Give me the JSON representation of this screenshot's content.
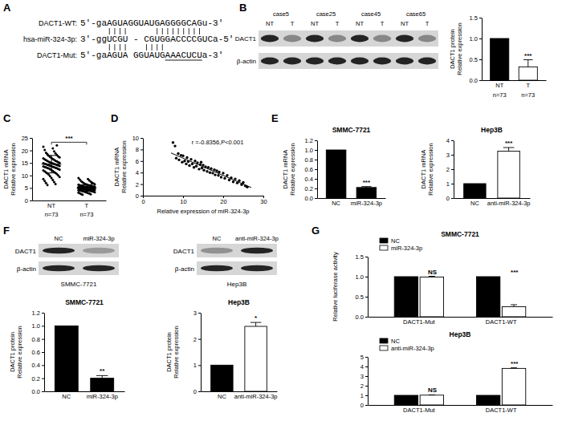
{
  "panel_labels": [
    "A",
    "B",
    "C",
    "D",
    "E",
    "F",
    "G"
  ],
  "alignment": {
    "rows": [
      {
        "name": "DACT1-WT:",
        "sequence": "5'-gaAGUAGGUAUGAGGGGCAGu-3'"
      },
      {
        "name": "hsa-miR-324-3p:",
        "sequence": "3'-ggUCGU - CGUGGACCCCGUCa-5'"
      },
      {
        "name": "DACT1-Mut:",
        "sequence": "5'-gaAGUA GGUAUGAAACUCUa-3'"
      }
    ]
  },
  "blots": [
    {
      "lane_groups": [
        "case5",
        "case25",
        "case45",
        "case65"
      ],
      "lanes": [
        "NT",
        "T",
        "NT",
        "T",
        "NT",
        "T",
        "NT",
        "T"
      ],
      "rows": [
        "DACT1",
        "β-actin"
      ]
    },
    {
      "title": "SMMC-7721",
      "lanes": [
        "NC",
        "miR-324-3p"
      ],
      "rows": [
        "DACT1",
        "β-actin"
      ]
    },
    {
      "title": "Hep3B",
      "lanes": [
        "NC",
        "anti-miR-324-3p"
      ],
      "rows": [
        "DACT1",
        "β-actin"
      ]
    }
  ],
  "chart_data": [
    {
      "type": "bar",
      "y_label": [
        "DACT1 protein",
        "Relative expression"
      ],
      "categories": [
        "NT",
        "T"
      ],
      "category_notes": [
        "n=73",
        "n=73"
      ],
      "values": [
        1.0,
        0.32
      ],
      "errors": [
        null,
        0.17
      ],
      "colors": [
        "#000000",
        "#ffffff"
      ],
      "ylim": [
        0,
        1.5
      ],
      "yticks": [
        {
          "value": 0,
          "label": "0.0"
        },
        0.5,
        {
          "value": 1,
          "label": "1.0"
        },
        1.5
      ],
      "annotations": [
        {
          "text": "***",
          "category": "T"
        }
      ]
    },
    {
      "type": "dot",
      "y_label": [
        "DACT1 mRNA",
        "Relative expression"
      ],
      "categories": [
        "NT",
        "T"
      ],
      "category_notes": [
        "n=73",
        "n=73"
      ],
      "values": [
        [
          21.5,
          20.8,
          20.2,
          19.6,
          19.1,
          18.8,
          18.5,
          18.2,
          17.9,
          17.6,
          17.4,
          17.2,
          17.0,
          16.8,
          16.6,
          16.4,
          16.3,
          16.1,
          15.9,
          15.8,
          15.6,
          15.5,
          15.3,
          15.2,
          15.1,
          15.0,
          14.9,
          14.8,
          14.7,
          14.6,
          14.5,
          14.4,
          14.3,
          14.2,
          14.1,
          14.0,
          13.9,
          13.8,
          13.7,
          13.6,
          13.5,
          13.4,
          13.3,
          13.2,
          13.1,
          13.0,
          12.9,
          12.8,
          12.6,
          12.5,
          12.3,
          12.2,
          12.0,
          11.8,
          11.6,
          11.4,
          11.2,
          11.0,
          10.8,
          10.6,
          10.3,
          10.0,
          9.7,
          9.4,
          9.0,
          8.6,
          8.2,
          7.8,
          7.4,
          7.0,
          6.6,
          6.2,
          22.0
        ],
        [
          9.0,
          8.6,
          8.3,
          8.0,
          7.7,
          7.5,
          7.3,
          7.1,
          6.9,
          6.8,
          6.6,
          6.5,
          6.4,
          6.3,
          6.2,
          6.1,
          6.0,
          5.9,
          5.8,
          5.8,
          5.7,
          5.6,
          5.6,
          5.5,
          5.5,
          5.4,
          5.4,
          5.3,
          5.3,
          5.2,
          5.2,
          5.1,
          5.1,
          5.0,
          5.0,
          5.0,
          4.9,
          4.9,
          4.8,
          4.8,
          4.7,
          4.7,
          4.6,
          4.6,
          4.5,
          4.5,
          4.4,
          4.4,
          4.3,
          4.3,
          4.2,
          4.2,
          4.1,
          4.0,
          4.0,
          3.9,
          3.9,
          3.8,
          3.7,
          3.7,
          3.6,
          3.5,
          3.4,
          3.3,
          3.2,
          3.1,
          3.0,
          2.9,
          2.8,
          2.6,
          2.5,
          2.3,
          6.7
        ]
      ],
      "means": [
        14.5,
        5.0
      ],
      "sd": [
        3.5,
        1.3
      ],
      "color": "#000000",
      "ylim": [
        0,
        25
      ],
      "yticks": [
        0,
        5,
        10,
        15,
        20,
        25
      ],
      "annotations": [
        {
          "text": "***",
          "between": [
            "NT",
            "T"
          ]
        }
      ]
    },
    {
      "type": "scatter",
      "x_label": "Relative expression of miR-324-3p",
      "y_label": [
        "DACT1 mRNA",
        "Relative expression"
      ],
      "annotation": "r =-0.8356,P<0.001",
      "color": "#000000",
      "x": [
        7.5,
        8,
        8.3,
        8.8,
        9,
        9.5,
        9.8,
        10,
        10.4,
        10.8,
        11,
        11.3,
        11.6,
        12,
        12.3,
        12.7,
        13,
        13.3,
        13.6,
        14,
        14.3,
        14.7,
        15,
        15.2,
        15.6,
        16,
        16.3,
        16.7,
        17,
        17.4,
        17.8,
        18,
        18.4,
        18.8,
        19,
        19.5,
        20,
        20.4,
        21,
        21.5,
        22,
        22.5,
        23,
        23.5,
        24,
        24.6,
        25,
        25.5,
        26,
        14.5
      ],
      "y": [
        9.2,
        8.6,
        6.5,
        7.3,
        6.2,
        7.0,
        5.8,
        6.9,
        6.0,
        5.5,
        6.6,
        5.9,
        5.2,
        6.3,
        5.5,
        4.9,
        6.0,
        5.1,
        5.7,
        4.6,
        5.4,
        4.8,
        5.3,
        4.4,
        5.0,
        4.2,
        4.9,
        4.0,
        4.7,
        3.9,
        4.5,
        3.6,
        4.3,
        3.5,
        4.1,
        3.2,
        3.9,
        3.0,
        3.5,
        2.7,
        3.1,
        2.4,
        2.9,
        2.2,
        2.6,
        1.9,
        2.3,
        1.7,
        1.5,
        5.8
      ],
      "fit_line": {
        "x": [
          7,
          27
        ],
        "y": [
          7.4,
          1.4
        ]
      },
      "xlim": [
        0,
        30
      ],
      "xticks": [
        0,
        10,
        20,
        30
      ],
      "ylim": [
        0,
        10
      ],
      "yticks": [
        0,
        2,
        4,
        6,
        8,
        10
      ]
    },
    {
      "type": "bar",
      "title": "SMMC-7721",
      "y_label": [
        "DACT1 mRNA",
        "Relative expression"
      ],
      "categories": [
        "NC",
        "miR-324-3p"
      ],
      "values": [
        1.0,
        0.22
      ],
      "errors": [
        null,
        0.02
      ],
      "colors": [
        "#000000",
        "#000000"
      ],
      "ylim": [
        0,
        1.2
      ],
      "yticks": [
        {
          "value": 0,
          "label": "0.0"
        },
        0.2,
        0.4,
        0.6,
        0.8,
        {
          "value": 1,
          "label": "1.0"
        },
        1.2
      ],
      "annotations": [
        {
          "text": "***",
          "category": "miR-324-3p"
        }
      ]
    },
    {
      "type": "bar",
      "title": "Hep3B",
      "y_label": [
        "DACT1 mRNA",
        "Relative expression"
      ],
      "categories": [
        "NC",
        "anti-miR-324-3p"
      ],
      "values": [
        1.0,
        3.25
      ],
      "errors": [
        null,
        0.25
      ],
      "colors": [
        "#000000",
        "#ffffff"
      ],
      "ylim": [
        0,
        4
      ],
      "yticks": [
        0,
        1,
        2,
        3,
        4
      ],
      "annotations": [
        {
          "text": "***",
          "category": "anti-miR-324-3p"
        }
      ]
    },
    {
      "type": "bar",
      "title": "SMMC-7721",
      "y_label": [
        "DACT1 protein",
        "Relative expression"
      ],
      "categories": [
        "NC",
        "miR-324-3p"
      ],
      "values": [
        1.0,
        0.2
      ],
      "errors": [
        null,
        0.04
      ],
      "colors": [
        "#000000",
        "#000000"
      ],
      "ylim": [
        0,
        1.2
      ],
      "yticks": [
        {
          "value": 0,
          "label": "0.0"
        },
        0.2,
        0.4,
        0.6,
        0.8,
        {
          "value": 1,
          "label": "1.0"
        },
        1.2
      ],
      "annotations": [
        {
          "text": "**",
          "category": "miR-324-3p"
        }
      ]
    },
    {
      "type": "bar",
      "title": "Hep3B",
      "y_label": [
        "DACT1 protein",
        "Relative expression"
      ],
      "categories": [
        "NC",
        "anti-miR-324-3p"
      ],
      "values": [
        1.0,
        2.48
      ],
      "errors": [
        null,
        0.15
      ],
      "colors": [
        "#000000",
        "#ffffff"
      ],
      "ylim": [
        0,
        3
      ],
      "yticks": [
        0,
        1,
        2,
        3
      ],
      "annotations": [
        {
          "text": "*",
          "category": "anti-miR-324-3p"
        }
      ]
    },
    {
      "type": "bar",
      "title": "SMMC-7721",
      "y_label": "Relative luciferase activity",
      "legend": "top-left",
      "categories": [
        "DACT1-Mut",
        "DACT1-WT"
      ],
      "series": [
        {
          "name": "NC",
          "color": "#000000",
          "values": [
            1.0,
            1.0
          ]
        },
        {
          "name": "miR-324-3p",
          "color": "#ffffff",
          "values": [
            0.99,
            0.25
          ],
          "errors": [
            0.02,
            0.05
          ]
        }
      ],
      "ylim": [
        0,
        1.5
      ],
      "yticks": [
        {
          "value": 0,
          "label": "0.0"
        },
        0.5,
        {
          "value": 1,
          "label": "1.0"
        },
        1.5
      ],
      "annotations": [
        {
          "text": "NS",
          "category": "DACT1-Mut"
        },
        {
          "text": "***",
          "category": "DACT1-WT"
        }
      ]
    },
    {
      "type": "bar",
      "title": "Hep3B",
      "legend": "top-left",
      "categories": [
        "DACT1-Mut",
        "DACT1-WT"
      ],
      "series": [
        {
          "name": "NC",
          "color": "#000000",
          "values": [
            1.0,
            1.0
          ]
        },
        {
          "name": "anti-miR-324-3p",
          "color": "#ffffff",
          "values": [
            1.02,
            3.8
          ],
          "errors": [
            0.03,
            0.06
          ]
        }
      ],
      "ylim": [
        0,
        5
      ],
      "yticks": [
        0,
        1,
        2,
        3,
        4,
        5
      ],
      "annotations": [
        {
          "text": "NS",
          "category": "DACT1-Mut"
        },
        {
          "text": "***",
          "category": "DACT1-WT"
        }
      ]
    }
  ]
}
